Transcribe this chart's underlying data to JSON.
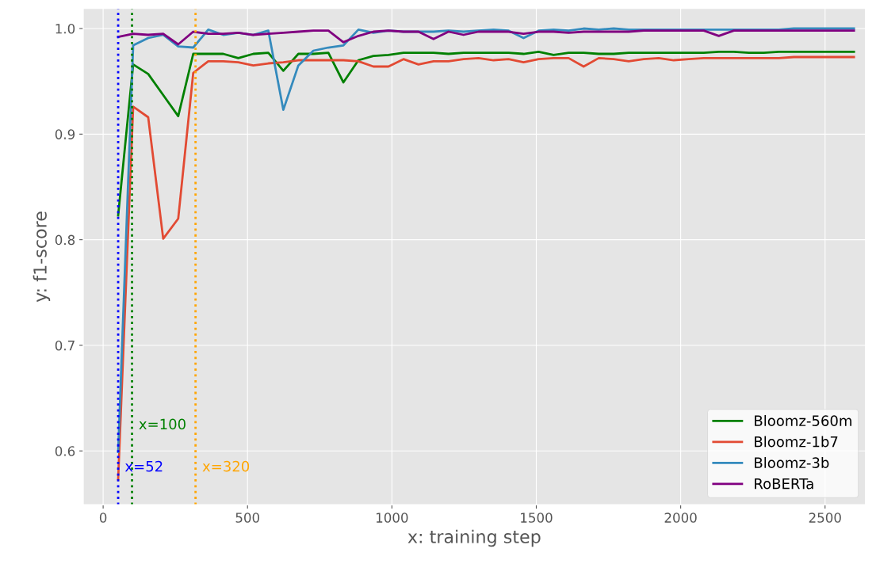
{
  "chart_data": {
    "type": "line",
    "xlabel": "x: training step",
    "ylabel": "y: f1-score",
    "x": [
      52,
      104,
      156,
      208,
      260,
      312,
      364,
      416,
      468,
      520,
      572,
      624,
      676,
      728,
      780,
      832,
      884,
      936,
      988,
      1040,
      1092,
      1144,
      1196,
      1248,
      1300,
      1352,
      1404,
      1456,
      1508,
      1560,
      1612,
      1664,
      1716,
      1768,
      1820,
      1872,
      1924,
      1976,
      2028,
      2080,
      2132,
      2184,
      2236,
      2288,
      2340,
      2392,
      2444,
      2496,
      2548,
      2600
    ],
    "series": [
      {
        "name": "Bloomz-560m",
        "color": "#008000",
        "values": [
          0.823,
          0.966,
          0.957,
          0.937,
          0.917,
          0.976,
          0.976,
          0.976,
          0.972,
          0.976,
          0.977,
          0.96,
          0.976,
          0.976,
          0.977,
          0.949,
          0.97,
          0.974,
          0.975,
          0.977,
          0.977,
          0.977,
          0.976,
          0.977,
          0.977,
          0.977,
          0.977,
          0.976,
          0.978,
          0.975,
          0.977,
          0.977,
          0.976,
          0.976,
          0.977,
          0.977,
          0.977,
          0.977,
          0.977,
          0.977,
          0.978,
          0.978,
          0.977,
          0.977,
          0.978,
          0.978,
          0.978,
          0.978,
          0.978,
          0.978
        ]
      },
      {
        "name": "Bloomz-1b7",
        "color": "#e24a33",
        "values": [
          0.573,
          0.926,
          0.916,
          0.801,
          0.82,
          0.958,
          0.969,
          0.969,
          0.968,
          0.965,
          0.967,
          0.968,
          0.97,
          0.97,
          0.97,
          0.97,
          0.969,
          0.964,
          0.964,
          0.971,
          0.966,
          0.969,
          0.969,
          0.971,
          0.972,
          0.97,
          0.971,
          0.968,
          0.971,
          0.972,
          0.972,
          0.964,
          0.972,
          0.971,
          0.969,
          0.971,
          0.972,
          0.97,
          0.971,
          0.972,
          0.972,
          0.972,
          0.972,
          0.972,
          0.972,
          0.973,
          0.973,
          0.973,
          0.973,
          0.973
        ]
      },
      {
        "name": "Bloomz-3b",
        "color": "#348abd",
        "values": [
          0.599,
          0.984,
          0.991,
          0.994,
          0.983,
          0.982,
          0.999,
          0.994,
          0.996,
          0.994,
          0.998,
          0.923,
          0.965,
          0.979,
          0.982,
          0.984,
          0.999,
          0.996,
          0.998,
          0.997,
          0.997,
          0.997,
          0.998,
          0.997,
          0.998,
          0.999,
          0.998,
          0.991,
          0.998,
          0.999,
          0.998,
          1.0,
          0.999,
          1.0,
          0.999,
          0.999,
          0.999,
          0.999,
          0.999,
          0.999,
          0.999,
          0.999,
          0.999,
          0.999,
          0.999,
          1.0,
          1.0,
          1.0,
          1.0,
          1.0
        ]
      },
      {
        "name": "RoBERTa",
        "color": "#800080",
        "values": [
          0.992,
          0.995,
          0.994,
          0.995,
          0.985,
          0.997,
          0.995,
          0.995,
          0.996,
          0.994,
          0.995,
          0.996,
          0.997,
          0.998,
          0.998,
          0.987,
          0.993,
          0.997,
          0.998,
          0.997,
          0.997,
          0.99,
          0.997,
          0.994,
          0.997,
          0.997,
          0.997,
          0.995,
          0.997,
          0.997,
          0.996,
          0.997,
          0.997,
          0.997,
          0.997,
          0.998,
          0.998,
          0.998,
          0.998,
          0.998,
          0.993,
          0.998,
          0.998,
          0.998,
          0.998,
          0.998,
          0.998,
          0.998,
          0.998,
          0.998
        ]
      }
    ],
    "xlim": [
      -69,
      2640
    ],
    "ylim": [
      0.549,
      1.019
    ],
    "xticks": [
      0,
      500,
      1000,
      1500,
      2000,
      2500
    ],
    "yticks": [
      {
        "value": 0.6,
        "label": "0.6"
      },
      {
        "value": 0.7,
        "label": "0.7"
      },
      {
        "value": 0.8,
        "label": "0.8"
      },
      {
        "value": 0.9,
        "label": "0.9"
      },
      {
        "value": 1.0,
        "label": "1.0"
      }
    ],
    "ref_lines": [
      {
        "axis": "x",
        "value": 52,
        "color": "#0000ff",
        "line_style": "dotted",
        "label": "x=52"
      },
      {
        "axis": "x",
        "value": 100,
        "color": "#008000",
        "line_style": "dotted",
        "label": "x=100"
      },
      {
        "axis": "x",
        "value": 320,
        "color": "#ffa500",
        "line_style": "dotted",
        "label": "x=320"
      }
    ],
    "grid": true,
    "legend": "lower right",
    "line_style": "solid",
    "marker": "none"
  }
}
